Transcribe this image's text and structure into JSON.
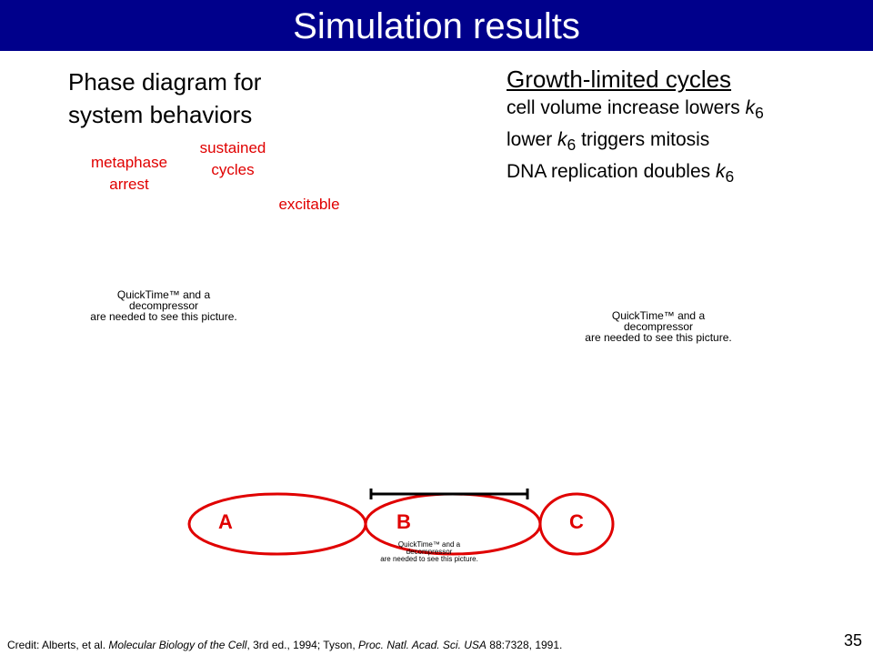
{
  "header": {
    "title": "Simulation results"
  },
  "phase": {
    "heading_line1": "Phase diagram for",
    "heading_line2": "system behaviors",
    "labels": {
      "metaphase_1": "metaphase",
      "metaphase_2": "arrest",
      "sustained_1": "sustained",
      "sustained_2": "cycles",
      "excitable": "excitable"
    }
  },
  "growth": {
    "heading": "Growth-limited cycles",
    "line1_text": "cell volume increase lowers ",
    "line2_pre": "lower ",
    "line2_post": " triggers mitosis",
    "line3_text": "DNA replication doubles ",
    "k_symbol": "k",
    "k_subscript": "6"
  },
  "placeholders": {
    "left": {
      "line1": "QuickTime™ and a",
      "line2": "decompressor",
      "line3": "are needed to see this picture."
    },
    "right": {
      "line1": "QuickTime™ and a",
      "line2": "decompressor",
      "line3": "are needed to see this picture."
    },
    "bottom": {
      "line1": "QuickTime™ and a",
      "line2": "decompressor",
      "line3": "are needed to see this picture."
    }
  },
  "cycle_diagram": {
    "labels": {
      "a": "A",
      "b": "B",
      "c": "C"
    },
    "stroke_color": "#e00000"
  },
  "footer": {
    "credit_pre": "Credit: Alberts, et al. ",
    "credit_book": "Molecular Biology of the Cell",
    "credit_mid": ", 3rd ed., 1994; Tyson, ",
    "credit_journal": "Proc. Natl. Acad. Sci. USA",
    "credit_post": " 88:7328, 1991.",
    "page_number": "35"
  },
  "colors": {
    "title_bg": "#00008b",
    "accent_red": "#e00000"
  }
}
